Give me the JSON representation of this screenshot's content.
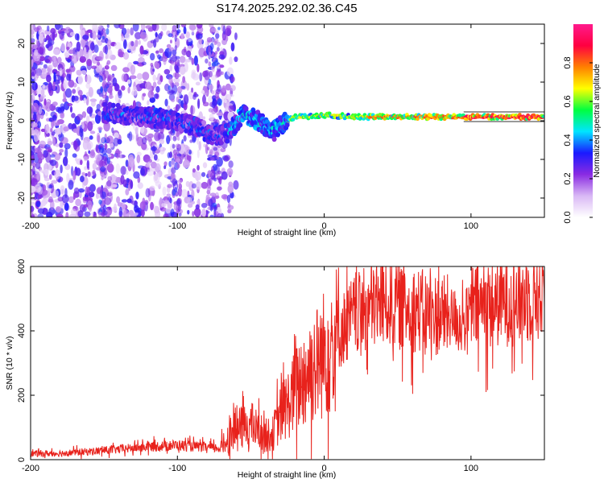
{
  "title": "S174.2025.292.02.36.C45",
  "chart_data": [
    {
      "type": "heatmap",
      "name": "spectrogram",
      "xlabel": "Height of straight line (km)",
      "ylabel": "Frequency (Hz)",
      "xlim": [
        -200,
        150
      ],
      "ylim": [
        -25,
        25
      ],
      "xticks": [
        -200,
        -100,
        0,
        100
      ],
      "yticks": [
        -20,
        -10,
        0,
        10,
        20
      ],
      "colorbar": {
        "label": "Normalized spectral amplitude",
        "range": [
          0.0,
          1.0
        ],
        "ticks": [
          0.0,
          0.2,
          0.4,
          0.6,
          0.8
        ],
        "colormap": [
          "#ffffff",
          "#d9b8f5",
          "#8a2be2",
          "#1a1aff",
          "#00e5ff",
          "#00ff40",
          "#ffff00",
          "#ff8000",
          "#ff0040",
          "#ff1a8c"
        ]
      },
      "ridge": {
        "description_points_km_hz": [
          [
            -145,
            2
          ],
          [
            -120,
            1
          ],
          [
            -100,
            0
          ],
          [
            -85,
            -2
          ],
          [
            -75,
            -4
          ],
          [
            -65,
            -3
          ],
          [
            -55,
            2
          ],
          [
            -45,
            0
          ],
          [
            -35,
            -3
          ],
          [
            -30,
            -1
          ],
          [
            -25,
            0
          ],
          [
            -20,
            1
          ],
          [
            -10,
            1
          ],
          [
            0,
            1.5
          ],
          [
            20,
            1
          ],
          [
            50,
            1
          ],
          [
            80,
            1
          ],
          [
            100,
            1
          ],
          [
            150,
            1
          ]
        ],
        "amplitude_segments": [
          {
            "x0": -150,
            "x1": -65,
            "amp": 0.35
          },
          {
            "x0": -65,
            "x1": -25,
            "amp": 0.45
          },
          {
            "x0": -25,
            "x1": 30,
            "amp": 0.65
          },
          {
            "x0": 30,
            "x1": 95,
            "amp": 0.8
          },
          {
            "x0": 95,
            "x1": 150,
            "amp": 0.92
          }
        ]
      }
    },
    {
      "type": "line",
      "name": "snr",
      "xlabel": "Height of straight line (km)",
      "ylabel": "SNR (10 * v/v)",
      "xlim": [
        -200,
        150
      ],
      "ylim": [
        0,
        600
      ],
      "xticks": [
        -200,
        -100,
        0,
        100
      ],
      "yticks": [
        0,
        200,
        400,
        600
      ],
      "color": "#e8221c",
      "series": [
        {
          "name": "SNR",
          "x": [
            -200,
            -180,
            -160,
            -140,
            -120,
            -100,
            -80,
            -70,
            -62,
            -55,
            -50,
            -45,
            -40,
            -35,
            -30,
            -25,
            -20,
            -15,
            -10,
            -5,
            0,
            5,
            10,
            15,
            20,
            25,
            30,
            40,
            50,
            60,
            70,
            80,
            90,
            95,
            100,
            110,
            120,
            130,
            140,
            150
          ],
          "values": [
            18,
            20,
            25,
            32,
            40,
            45,
            38,
            35,
            95,
            100,
            110,
            90,
            75,
            80,
            140,
            170,
            210,
            250,
            280,
            300,
            330,
            360,
            390,
            420,
            445,
            455,
            470,
            490,
            480,
            470,
            455,
            450,
            440,
            420,
            470,
            480,
            490,
            495,
            505,
            520
          ]
        }
      ]
    }
  ]
}
